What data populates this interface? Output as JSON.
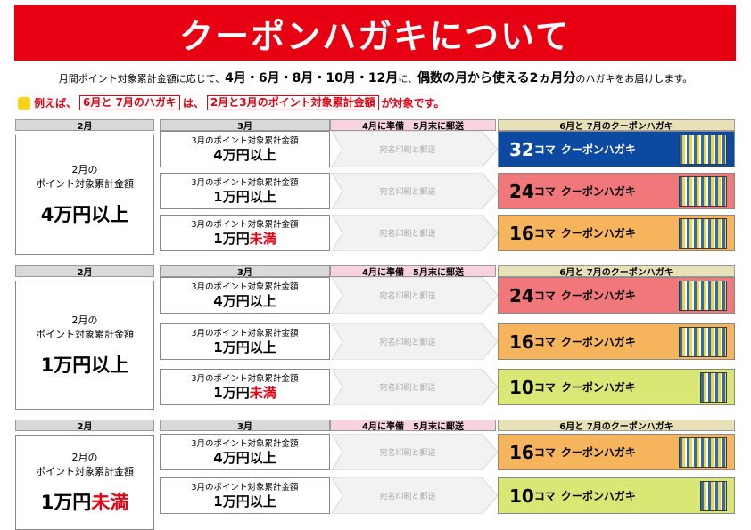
{
  "title": "クーポンハガキについて",
  "intro": {
    "p1": "月間ポイント対象累計金額に応じて、",
    "months": "4月・6月・8月・10月・12月",
    "p2": "に、",
    "b2": "偶数の月から使える",
    "b3": "2ヵ月分",
    "p3": "のハガキをお届けします。"
  },
  "example": {
    "t1": "例えば、",
    "box1": "6月と 7月のハガキ",
    "t2": "は、",
    "box2": "2月と3月のポイント対象累計金額",
    "t3": "が対象です。"
  },
  "headers": {
    "feb": "2月",
    "mar": "3月",
    "process": "4月に準備　5月末に郵送",
    "result": "6月と 7月のクーポンハガキ"
  },
  "common": {
    "mar_label": "3月のポイント対象累計金額",
    "process_label": "宛名印刷と郵送",
    "koma": "コマ",
    "card_name": "クーポンハガキ",
    "feb_label_1": "2月の",
    "feb_label_2": "ポイント対象累計金額"
  },
  "colors": {
    "title_red": "#e60012",
    "blue": "#0c49a1",
    "pink": "#f0777a",
    "orange": "#f6b45c",
    "lime": "#dbe774"
  },
  "blocks": [
    {
      "feb_amount": "4万円以上",
      "feb_suffix": "",
      "rows": [
        {
          "amount": "4万円以上",
          "amount_red": "",
          "count": "32",
          "color": "blue"
        },
        {
          "amount": "1万円以上",
          "amount_red": "",
          "count": "24",
          "color": "pink"
        },
        {
          "amount": "1万円",
          "amount_red": "未満",
          "count": "16",
          "color": "orange"
        }
      ]
    },
    {
      "feb_amount": "1万円以上",
      "feb_suffix": "",
      "rows": [
        {
          "amount": "4万円以上",
          "amount_red": "",
          "count": "24",
          "color": "pink"
        },
        {
          "amount": "1万円以上",
          "amount_red": "",
          "count": "16",
          "color": "orange"
        },
        {
          "amount": "1万円",
          "amount_red": "未満",
          "count": "10",
          "color": "lime"
        }
      ]
    },
    {
      "feb_amount": "1万円",
      "feb_suffix": "未満",
      "rows": [
        {
          "amount": "4万円以上",
          "amount_red": "",
          "count": "16",
          "color": "orange"
        },
        {
          "amount": "1万円以上",
          "amount_red": "",
          "count": "10",
          "color": "lime"
        }
      ]
    }
  ]
}
